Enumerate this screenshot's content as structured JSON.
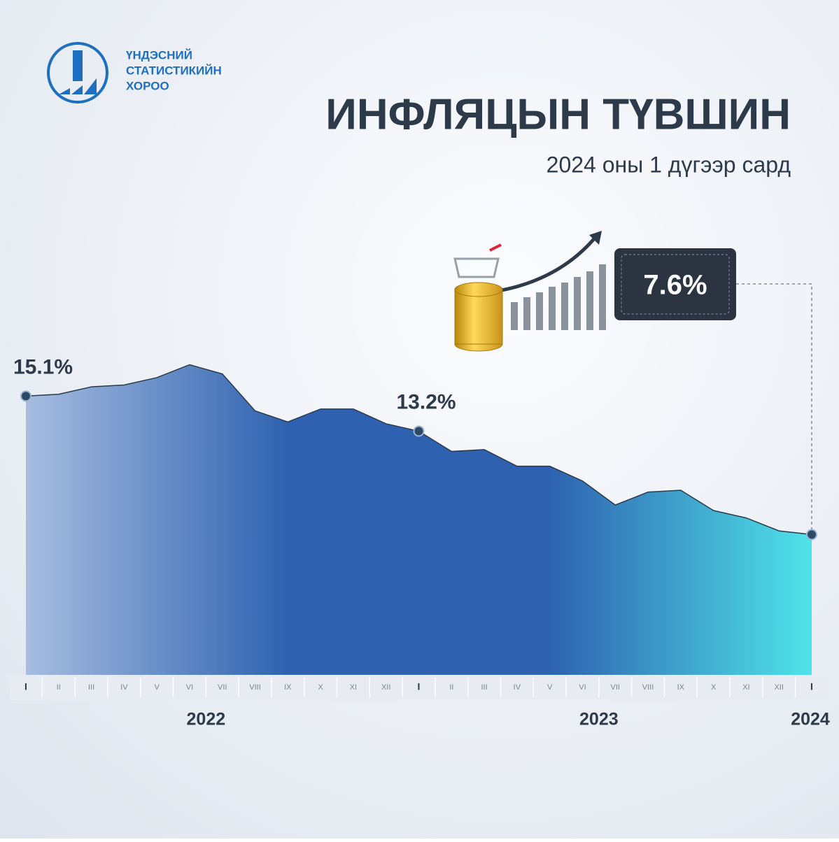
{
  "organization": [
    "ҮНДЭСНИЙ",
    "СТАТИСТИКИЙН",
    "ХОРОО"
  ],
  "chart_data": {
    "type": "area",
    "title": "ИНФЛЯЦЫН ТҮВШИН",
    "subtitle": "2024 оны 1 дүгээр сард",
    "categories": [
      "I",
      "II",
      "III",
      "IV",
      "V",
      "VI",
      "VII",
      "VIII",
      "IX",
      "X",
      "XI",
      "XII",
      "I",
      "II",
      "III",
      "IV",
      "V",
      "VI",
      "VII",
      "VIII",
      "IX",
      "X",
      "XI",
      "XII",
      "I"
    ],
    "years": [
      "2022",
      "2023",
      "2024"
    ],
    "values": [
      15.1,
      15.2,
      15.6,
      15.7,
      16.1,
      16.8,
      16.3,
      14.3,
      13.7,
      14.4,
      14.4,
      13.6,
      13.2,
      12.1,
      12.2,
      11.3,
      11.3,
      10.5,
      9.2,
      9.9,
      10.0,
      8.9,
      8.5,
      7.8,
      7.6
    ],
    "value_labels": [
      "15.1%",
      null,
      null,
      null,
      null,
      null,
      null,
      null,
      null,
      null,
      null,
      null,
      "13.2%",
      null,
      null,
      null,
      null,
      null,
      null,
      null,
      null,
      null,
      null,
      null,
      "7.6%"
    ],
    "colors": [
      "#a7bde0",
      "#2e62b0",
      "#2e62b0",
      "#4fe3e8"
    ],
    "ylim": [
      0,
      20
    ]
  }
}
